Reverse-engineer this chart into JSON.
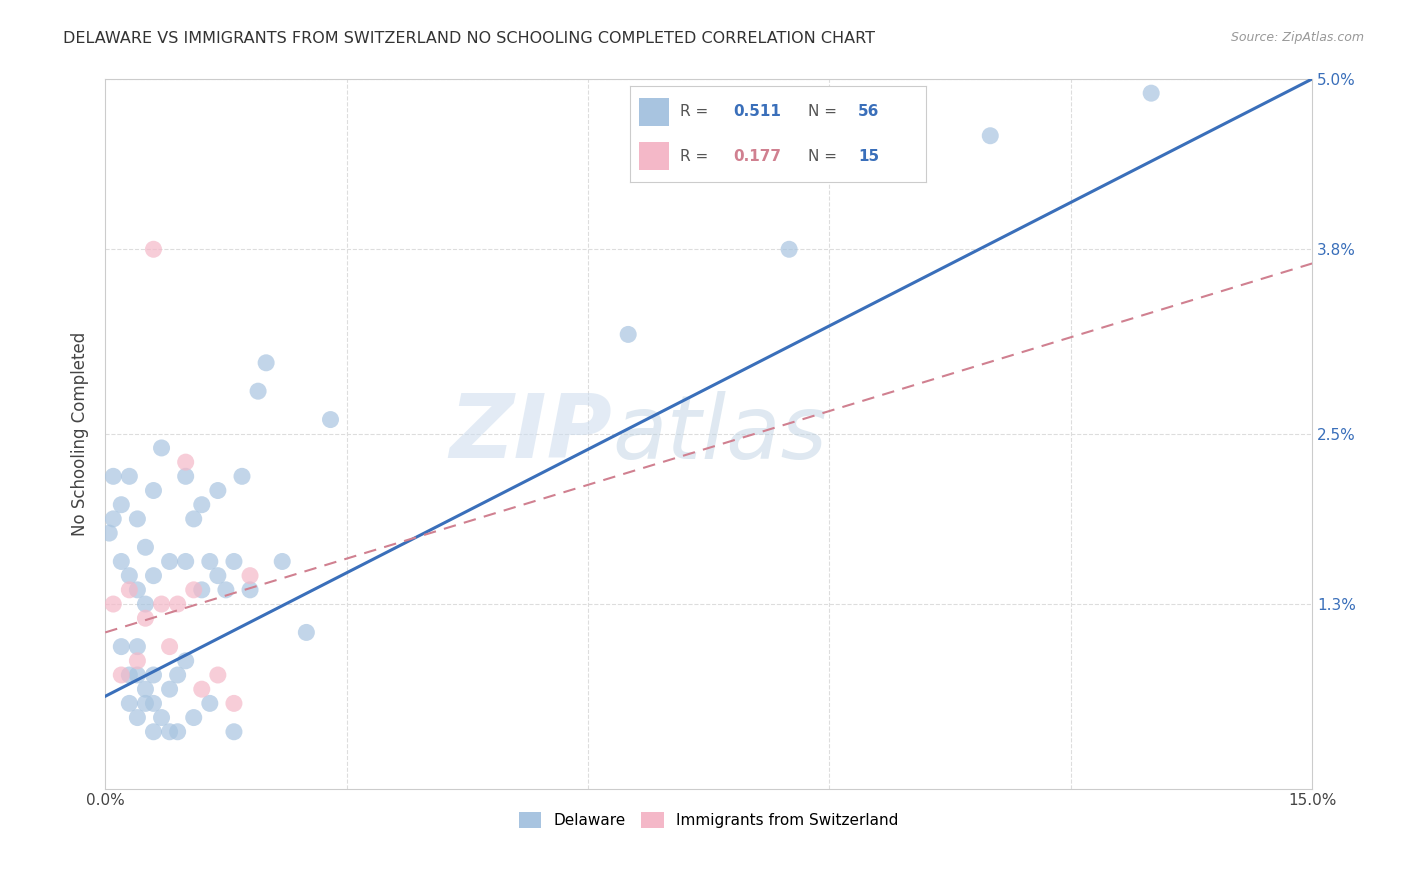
{
  "title": "DELAWARE VS IMMIGRANTS FROM SWITZERLAND NO SCHOOLING COMPLETED CORRELATION CHART",
  "source": "Source: ZipAtlas.com",
  "ylabel": "No Schooling Completed",
  "xmin": 0.0,
  "xmax": 0.15,
  "ymin": 0.0,
  "ymax": 0.05,
  "xticks": [
    0.0,
    0.03,
    0.06,
    0.09,
    0.12,
    0.15
  ],
  "yticks": [
    0.0,
    0.013,
    0.025,
    0.038,
    0.05
  ],
  "ytick_labels": [
    "",
    "1.3%",
    "2.5%",
    "3.8%",
    "5.0%"
  ],
  "xtick_labels": [
    "0.0%",
    "",
    "",
    "",
    "",
    "15.0%"
  ],
  "legend_blue_R": "0.511",
  "legend_blue_N": "56",
  "legend_pink_R": "0.177",
  "legend_pink_N": "15",
  "watermark_zip": "ZIP",
  "watermark_atlas": "atlas",
  "blue_color": "#a8c4e0",
  "blue_line_color": "#3a6fba",
  "pink_color": "#f4b8c8",
  "pink_line_color": "#d08090",
  "background_color": "#ffffff",
  "grid_color": "#dddddd",
  "blue_scatter_x": [
    0.0005,
    0.001,
    0.001,
    0.002,
    0.002,
    0.002,
    0.003,
    0.003,
    0.003,
    0.003,
    0.004,
    0.004,
    0.004,
    0.004,
    0.004,
    0.005,
    0.005,
    0.005,
    0.005,
    0.006,
    0.006,
    0.006,
    0.006,
    0.006,
    0.007,
    0.007,
    0.008,
    0.008,
    0.008,
    0.009,
    0.009,
    0.01,
    0.01,
    0.01,
    0.011,
    0.011,
    0.012,
    0.012,
    0.013,
    0.013,
    0.014,
    0.014,
    0.015,
    0.016,
    0.016,
    0.017,
    0.018,
    0.019,
    0.02,
    0.022,
    0.025,
    0.028,
    0.065,
    0.085,
    0.11,
    0.13
  ],
  "blue_scatter_y": [
    0.018,
    0.019,
    0.022,
    0.01,
    0.016,
    0.02,
    0.006,
    0.008,
    0.015,
    0.022,
    0.005,
    0.008,
    0.01,
    0.014,
    0.019,
    0.006,
    0.007,
    0.013,
    0.017,
    0.004,
    0.006,
    0.008,
    0.015,
    0.021,
    0.005,
    0.024,
    0.004,
    0.007,
    0.016,
    0.004,
    0.008,
    0.009,
    0.016,
    0.022,
    0.005,
    0.019,
    0.014,
    0.02,
    0.006,
    0.016,
    0.015,
    0.021,
    0.014,
    0.004,
    0.016,
    0.022,
    0.014,
    0.028,
    0.03,
    0.016,
    0.011,
    0.026,
    0.032,
    0.038,
    0.046,
    0.049
  ],
  "pink_scatter_x": [
    0.001,
    0.002,
    0.003,
    0.004,
    0.005,
    0.006,
    0.007,
    0.008,
    0.009,
    0.01,
    0.011,
    0.012,
    0.014,
    0.016,
    0.018
  ],
  "pink_scatter_y": [
    0.013,
    0.008,
    0.014,
    0.009,
    0.012,
    0.038,
    0.013,
    0.01,
    0.013,
    0.023,
    0.014,
    0.007,
    0.008,
    0.006,
    0.015
  ],
  "blue_line_x0": 0.0,
  "blue_line_x1": 0.15,
  "blue_line_y0": 0.0065,
  "blue_line_y1": 0.05,
  "pink_line_x0": 0.0,
  "pink_line_x1": 0.15,
  "pink_line_y0": 0.011,
  "pink_line_y1": 0.037
}
